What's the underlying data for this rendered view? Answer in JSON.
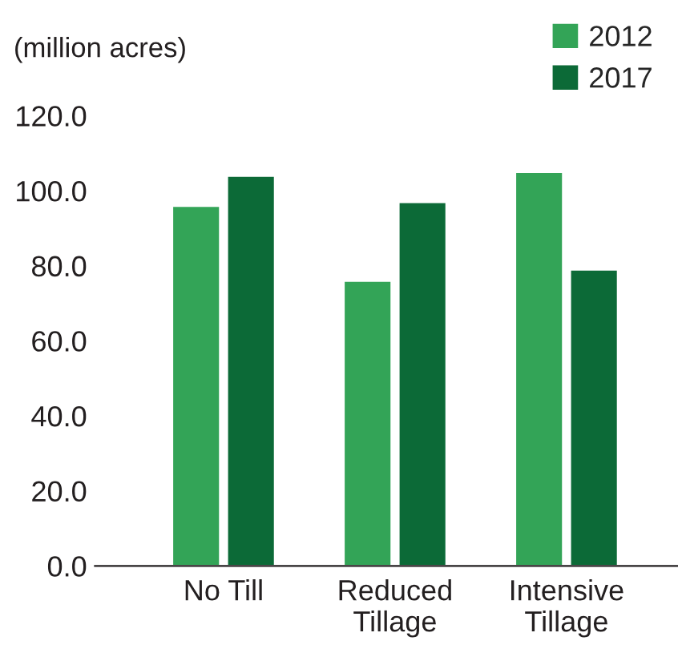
{
  "chart_data": {
    "type": "bar",
    "ylabel": "(million acres)",
    "categories": [
      "No Till",
      "Reduced\nTillage",
      "Intensive\nTillage"
    ],
    "series": [
      {
        "name": "2012",
        "color": "#33a457",
        "values": [
          96,
          76,
          105
        ]
      },
      {
        "name": "2017",
        "color": "#0c6a37",
        "values": [
          104,
          97,
          79
        ]
      }
    ],
    "ylim": [
      0,
      120
    ],
    "yticks": [
      {
        "value": 0,
        "label": "0.0"
      },
      {
        "value": 20,
        "label": "20.0"
      },
      {
        "value": 40,
        "label": "40.0"
      },
      {
        "value": 60,
        "label": "60.0"
      },
      {
        "value": 80,
        "label": "80.0"
      },
      {
        "value": 100,
        "label": "100.0"
      },
      {
        "value": 120,
        "label": "120.0"
      }
    ],
    "grid": false,
    "legend": "top right"
  }
}
